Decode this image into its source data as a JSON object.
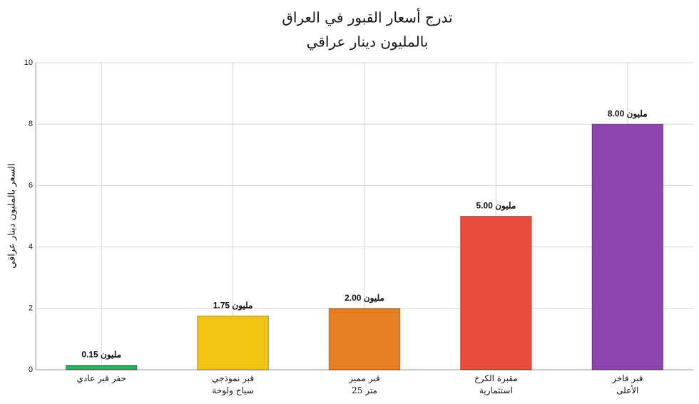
{
  "chart_data": {
    "type": "bar",
    "title": "تدرج أسعار القبور في العراق",
    "subtitle": "بالمليون دينار عراقي",
    "y_label": "السعر بالمليون دينار عراقي",
    "categories": [
      "حفر قبر عادي",
      "قبر نموذجي\nسياج ولوحة",
      "قبر مميز\n25 متر",
      "مقبرة الكرخ\nاستثمارية",
      "قبر فاخر\nالأعلى"
    ],
    "values": [
      0.15,
      1.75,
      2,
      5,
      8
    ],
    "value_labels": [
      "0.15 مليون",
      "1.75 مليون",
      "2.00 مليون",
      "5.00 مليون",
      "8.00 مليون"
    ],
    "colors": [
      "#27ae60",
      "#f1c40f",
      "#e67e22",
      "#e74c3c",
      "#8e44ad"
    ],
    "ylim": [
      0,
      10
    ],
    "yticks": [
      0,
      2,
      4,
      6,
      8,
      10
    ],
    "grid": true
  }
}
